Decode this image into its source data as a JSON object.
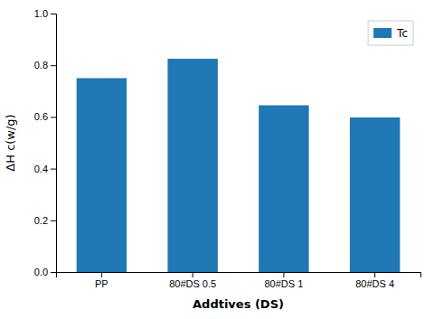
{
  "chart_data": {
    "type": "bar",
    "categories": [
      "PP",
      "80#DS 0.5",
      "80#DS 1",
      "80#DS 4"
    ],
    "series": [
      {
        "name": "Tc",
        "values": [
          0.75,
          0.825,
          0.645,
          0.598
        ]
      }
    ],
    "xlabel": "Addtives (DS)",
    "ylabel": "ΔH c(w/g)",
    "ylim": [
      0.0,
      1.0
    ],
    "yticks": [
      {
        "value": 0.0,
        "label": "0.0"
      },
      0.2,
      0.4,
      0.6,
      0.8,
      {
        "value": 1.0,
        "label": "1.0"
      }
    ],
    "grid": false,
    "legend": "upper right"
  }
}
